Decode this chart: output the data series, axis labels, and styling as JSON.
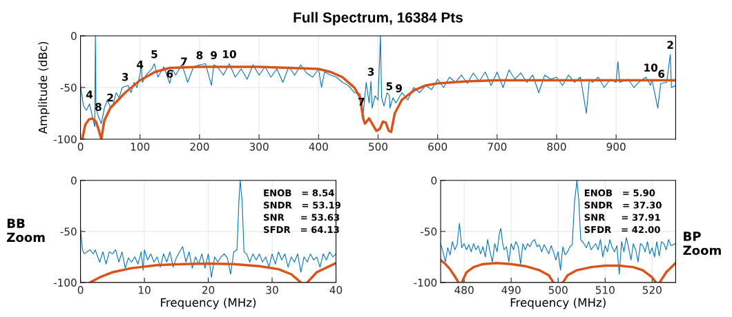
{
  "chart_data": [
    {
      "type": "line",
      "title": "Full Spectrum, 16384 Pts",
      "ylabel": "Amplitude (dBc)",
      "xlim": [
        0,
        1000
      ],
      "ylim": [
        -100,
        0
      ],
      "xticks": [
        0,
        100,
        200,
        300,
        400,
        500,
        600,
        700,
        800,
        900
      ],
      "yticks": [
        -100,
        -50,
        0
      ],
      "grid": true,
      "series": [
        {
          "color": "#0072bd",
          "x": [
            0,
            5,
            10,
            15,
            20,
            24,
            25,
            26,
            30,
            35,
            40,
            45,
            50,
            55,
            60,
            65,
            70,
            75,
            80,
            85,
            90,
            95,
            100,
            102,
            104,
            110,
            120,
            124,
            130,
            140,
            150,
            155,
            160,
            170,
            174,
            180,
            190,
            200,
            210,
            220,
            224,
            230,
            240,
            250,
            260,
            270,
            280,
            290,
            300,
            310,
            320,
            330,
            340,
            350,
            360,
            370,
            380,
            390,
            400,
            405,
            410,
            420,
            430,
            440,
            450,
            460,
            470,
            472,
            475,
            480,
            485,
            488,
            490,
            495,
            500,
            504,
            506,
            510,
            515,
            519,
            520,
            525,
            530,
            535,
            540,
            550,
            560,
            570,
            580,
            590,
            600,
            610,
            620,
            630,
            640,
            650,
            660,
            670,
            680,
            690,
            700,
            710,
            720,
            730,
            740,
            750,
            760,
            770,
            780,
            790,
            800,
            810,
            820,
            830,
            840,
            850,
            855,
            860,
            870,
            880,
            890,
            900,
            903,
            906,
            920,
            930,
            940,
            950,
            958,
            960,
            970,
            975,
            976,
            985,
            991,
            993,
            1000
          ],
          "values": [
            -48,
            -68,
            -72,
            -66,
            -78,
            -88,
            0,
            -70,
            -78,
            -85,
            -70,
            -62,
            -69,
            -66,
            -55,
            -60,
            -50,
            -49,
            -48,
            -55,
            -45,
            -50,
            -37,
            -28,
            -45,
            -38,
            -32,
            -27,
            -40,
            -30,
            -46,
            -33,
            -38,
            -28,
            -34,
            -45,
            -30,
            -28,
            -27,
            -48,
            -28,
            -30,
            -38,
            -27,
            -40,
            -32,
            -42,
            -28,
            -38,
            -30,
            -40,
            -32,
            -45,
            -30,
            -38,
            -28,
            -36,
            -40,
            -32,
            -50,
            -35,
            -38,
            -40,
            -45,
            -48,
            -55,
            -56,
            -73,
            -75,
            -45,
            -65,
            -44,
            -70,
            -58,
            -62,
            0,
            -60,
            -68,
            -55,
            -58,
            -70,
            -60,
            -65,
            -60,
            -55,
            -62,
            -50,
            -55,
            -48,
            -52,
            -42,
            -50,
            -40,
            -45,
            -38,
            -46,
            -36,
            -44,
            -35,
            -48,
            -35,
            -50,
            -33,
            -42,
            -36,
            -45,
            -38,
            -55,
            -38,
            -42,
            -40,
            -48,
            -38,
            -45,
            -40,
            -75,
            -42,
            -45,
            -40,
            -50,
            -42,
            -45,
            -25,
            -45,
            -42,
            -50,
            -44,
            -40,
            -48,
            -42,
            -70,
            -46,
            -46,
            -45,
            -18,
            -50,
            -48
          ]
        },
        {
          "color": "#d95319",
          "x": [
            3,
            8,
            14,
            20,
            26,
            30,
            35,
            40,
            50,
            75,
            100,
            125,
            150,
            200,
            300,
            400,
            420,
            440,
            460,
            470,
            475,
            478,
            485,
            490,
            497,
            503,
            508,
            513,
            518,
            522,
            528,
            540,
            560,
            580,
            600,
            650,
            700,
            1000
          ],
          "values": [
            -100,
            -86,
            -81,
            -80,
            -83,
            -90,
            -100,
            -82,
            -70,
            -55,
            -43,
            -35,
            -31,
            -30,
            -30,
            -32,
            -35,
            -40,
            -50,
            -60,
            -80,
            -85,
            -80,
            -85,
            -92,
            -90,
            -83,
            -84,
            -92,
            -93,
            -75,
            -62,
            -53,
            -48,
            -46,
            -44,
            -43,
            -43
          ]
        }
      ],
      "annotations": [
        {
          "text": "4",
          "x": 15,
          "y": -66
        },
        {
          "text": "8",
          "x": 30,
          "y": -78
        },
        {
          "text": "2",
          "x": 50,
          "y": -69
        },
        {
          "text": "3",
          "x": 75,
          "y": -49
        },
        {
          "text": "4",
          "x": 100,
          "y": -37
        },
        {
          "text": "5",
          "x": 124,
          "y": -27
        },
        {
          "text": "6",
          "x": 150,
          "y": -46
        },
        {
          "text": "7",
          "x": 174,
          "y": -34
        },
        {
          "text": "8",
          "x": 200,
          "y": -28
        },
        {
          "text": "9",
          "x": 224,
          "y": -28
        },
        {
          "text": "10",
          "x": 250,
          "y": -27
        },
        {
          "text": "3",
          "x": 488,
          "y": -44
        },
        {
          "text": "7",
          "x": 472,
          "y": -73
        },
        {
          "text": "5",
          "x": 519,
          "y": -58
        },
        {
          "text": "9",
          "x": 535,
          "y": -60
        },
        {
          "text": "10",
          "x": 958,
          "y": -40
        },
        {
          "text": "6",
          "x": 976,
          "y": -46
        },
        {
          "text": "2",
          "x": 991,
          "y": -18
        }
      ]
    },
    {
      "type": "line",
      "xlabel": "Frequency (MHz)",
      "ylabel": "BB\nZoom",
      "xlim": [
        0,
        40
      ],
      "ylim": [
        -100,
        0
      ],
      "xticks": [
        0,
        10,
        20,
        30,
        40
      ],
      "yticks": [
        -100,
        -50,
        0
      ],
      "grid": true,
      "series": [
        {
          "color": "#0072bd",
          "x": [
            0,
            0.3,
            0.6,
            1,
            1.5,
            2,
            2.3,
            3,
            3.5,
            4,
            4.5,
            5,
            5.5,
            6,
            6.5,
            7,
            7.5,
            8,
            8.5,
            9,
            9.5,
            9.8,
            10,
            10.5,
            11,
            11.5,
            12,
            12.5,
            13,
            13.5,
            14,
            14.5,
            15,
            15.5,
            16,
            16.5,
            17,
            17.5,
            18,
            18.5,
            19,
            19.5,
            20,
            20.5,
            21,
            21.5,
            22,
            22.5,
            23,
            23.5,
            24,
            24.5,
            24.8,
            25,
            25.3,
            25.6,
            26,
            26.5,
            27,
            27.5,
            28,
            28.5,
            29,
            29.5,
            30,
            30.5,
            31,
            31.5,
            32,
            32.5,
            33,
            33.5,
            34,
            34.5,
            35,
            35.5,
            36,
            36.5,
            37,
            37.5,
            38,
            38.5,
            39,
            39.5,
            40
          ],
          "values": [
            -47,
            -68,
            -72,
            -70,
            -68,
            -72,
            -68,
            -80,
            -70,
            -82,
            -70,
            -72,
            -68,
            -80,
            -70,
            -86,
            -76,
            -80,
            -75,
            -82,
            -70,
            -88,
            -68,
            -78,
            -72,
            -80,
            -75,
            -85,
            -72,
            -80,
            -70,
            -85,
            -76,
            -70,
            -65,
            -80,
            -70,
            -86,
            -75,
            -82,
            -72,
            -86,
            -72,
            -95,
            -75,
            -80,
            -75,
            -72,
            -76,
            -92,
            -70,
            -68,
            -20,
            0,
            -20,
            -70,
            -72,
            -80,
            -72,
            -78,
            -72,
            -80,
            -75,
            -85,
            -72,
            -82,
            -70,
            -78,
            -72,
            -85,
            -75,
            -80,
            -72,
            -90,
            -75,
            -80,
            -72,
            -78,
            -75,
            -85,
            -72,
            -78,
            -70,
            -75,
            -72
          ]
        },
        {
          "color": "#d95319",
          "x": [
            1.5,
            3,
            5,
            8,
            12,
            16,
            20,
            24,
            28,
            31,
            33,
            34.5,
            35,
            35.5,
            37,
            40
          ],
          "values": [
            -100,
            -95,
            -90,
            -86,
            -83,
            -82,
            -81.5,
            -82,
            -84,
            -87,
            -92,
            -100,
            null,
            -100,
            -90,
            -81
          ]
        }
      ],
      "annotations": [
        "ENOB   = 8.54",
        "SNDR   = 53.19",
        "SNR     = 53.63",
        "SFDR   = 64.13"
      ]
    },
    {
      "type": "line",
      "xlabel": "Frequency (MHz)",
      "ylabel": "BP\nZoom",
      "xlim": [
        475,
        525
      ],
      "ylim": [
        -100,
        0
      ],
      "xticks": [
        480,
        490,
        500,
        510,
        520
      ],
      "yticks": [
        -100,
        -50,
        0
      ],
      "grid": true,
      "series": [
        {
          "color": "#0072bd",
          "x": [
            475,
            475.5,
            476,
            476.5,
            477,
            477.5,
            478,
            478.5,
            479,
            479.5,
            480,
            480.5,
            481,
            481.5,
            482,
            482.5,
            483,
            483.5,
            484,
            484.5,
            485,
            485.5,
            486,
            486.5,
            487,
            487.5,
            487.8,
            488.2,
            488.5,
            489,
            489.5,
            490,
            490.5,
            491,
            491.5,
            492,
            492.5,
            493,
            493.5,
            494,
            494.5,
            495,
            495.5,
            496,
            496.5,
            497,
            497.5,
            498,
            498.5,
            499,
            499.5,
            500,
            500.5,
            501,
            501.5,
            502,
            502.5,
            503,
            503.5,
            504,
            504.4,
            504.8,
            505.5,
            506,
            506.5,
            507,
            507.5,
            508,
            508.5,
            509,
            509.5,
            510,
            510.5,
            511,
            511.5,
            512,
            512.5,
            513,
            513.5,
            514,
            514.5,
            515,
            515.5,
            516,
            516.5,
            517,
            517.5,
            518,
            518.5,
            519,
            519.5,
            520,
            520.5,
            521,
            521.5,
            522,
            522.5,
            523,
            523.5,
            524,
            525
          ],
          "values": [
            -62,
            -70,
            -80,
            -66,
            -73,
            -60,
            -68,
            -63,
            -42,
            -66,
            -62,
            -68,
            -63,
            -70,
            -62,
            -68,
            -64,
            -72,
            -65,
            -75,
            -58,
            -70,
            -80,
            -62,
            -70,
            -52,
            -47,
            -62,
            -68,
            -65,
            -80,
            -62,
            -68,
            -60,
            -65,
            -82,
            -62,
            -68,
            -62,
            -65,
            -60,
            -58,
            -65,
            -63,
            -70,
            -63,
            -67,
            -72,
            -64,
            -70,
            -78,
            -70,
            -88,
            -65,
            -73,
            -70,
            -65,
            -63,
            -20,
            0,
            -20,
            -58,
            -62,
            -66,
            -60,
            -68,
            -65,
            -62,
            -68,
            -58,
            -75,
            -64,
            -70,
            -58,
            -66,
            -70,
            -64,
            -92,
            -60,
            -70,
            -56,
            -66,
            -78,
            -62,
            -68,
            -80,
            -62,
            -64,
            -70,
            -60,
            -72,
            -66,
            -75,
            -60,
            -74,
            -60,
            -62,
            -68,
            -58,
            -64,
            -62
          ]
        },
        {
          "color": "#d95319",
          "x": [
            475,
            476,
            477,
            478,
            478.8,
            479.2,
            479.5,
            480.5,
            482,
            484,
            487,
            490,
            493,
            496,
            498,
            499,
            500,
            501,
            502,
            504,
            507,
            510,
            513,
            516,
            518,
            520,
            520.8,
            521.2,
            521.6,
            523,
            525
          ],
          "values": [
            -78,
            -82,
            -87,
            -94,
            -100,
            null,
            -100,
            -90,
            -85,
            -82,
            -81,
            -82,
            -84,
            -88,
            -93,
            -100,
            null,
            -100,
            -93,
            -88,
            -85,
            -83.5,
            -83.5,
            -85,
            -88,
            -95,
            -100,
            null,
            -100,
            -90,
            -81
          ]
        }
      ],
      "annotations": [
        "ENOB   = 5.90",
        "SNDR   = 37.30",
        "SNR     = 37.91",
        "SFDR   = 42.00"
      ]
    }
  ]
}
